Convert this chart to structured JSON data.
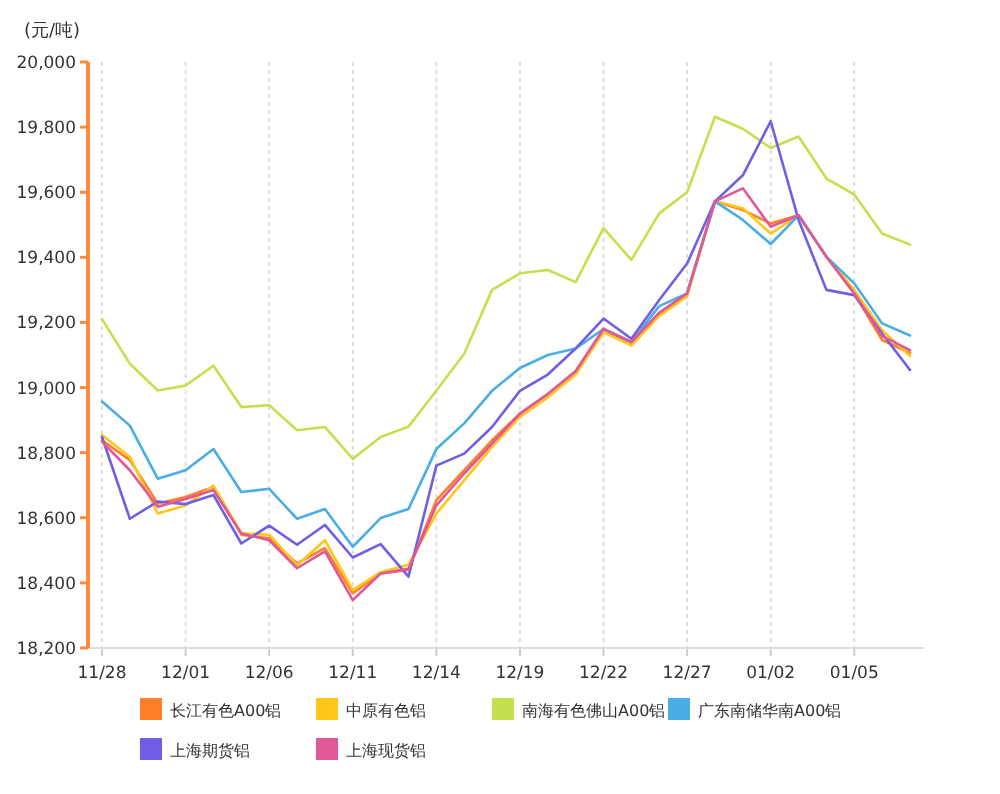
{
  "chart_data": {
    "type": "line",
    "ylabel": "(元/吨)",
    "categories": [
      "11/28",
      null,
      null,
      "12/01",
      null,
      null,
      "12/06",
      null,
      null,
      "12/11",
      null,
      null,
      "12/14",
      null,
      null,
      "12/19",
      null,
      null,
      "12/22",
      null,
      null,
      "12/27",
      null,
      null,
      "01/02",
      null,
      null,
      "01/05",
      null,
      null
    ],
    "series": [
      {
        "name": "长江有色A00铝",
        "color": "#ff7f2a",
        "values": [
          18838,
          18777,
          18644,
          18664,
          18695,
          18548,
          18537,
          18460,
          18507,
          18368,
          18429,
          18440,
          18654,
          18746,
          18838,
          18920,
          18980,
          19050,
          19180,
          19130,
          19226,
          19289,
          19572,
          19545,
          19504,
          19529,
          19402,
          19289,
          19146,
          19106
        ]
      },
      {
        "name": "中原有色铝",
        "color": "#ffc61a",
        "values": [
          18854,
          18787,
          18613,
          18638,
          18699,
          18552,
          18548,
          18454,
          18531,
          18378,
          18433,
          18456,
          18613,
          18715,
          18818,
          18910,
          18970,
          19040,
          19170,
          19130,
          19220,
          19280,
          19572,
          19551,
          19473,
          19529,
          19402,
          19300,
          19176,
          19097
        ]
      },
      {
        "name": "南海有色佛山A00铝",
        "color": "#c5e04f",
        "values": [
          19210,
          19073,
          18991,
          19006,
          19067,
          18940,
          18946,
          18869,
          18879,
          18781,
          18848,
          18880,
          18990,
          19104,
          19300,
          19351,
          19361,
          19324,
          19490,
          19392,
          19535,
          19600,
          19832,
          19795,
          19736,
          19771,
          19642,
          19593,
          19473,
          19439
        ]
      },
      {
        "name": "广东南储华南A00铝",
        "color": "#4aaee6",
        "values": [
          18957,
          18883,
          18720,
          18746,
          18811,
          18679,
          18689,
          18597,
          18627,
          18511,
          18599,
          18627,
          18811,
          18890,
          18990,
          19060,
          19100,
          19120,
          19180,
          19140,
          19250,
          19289,
          19572,
          19515,
          19441,
          19529,
          19402,
          19320,
          19197,
          19160
        ]
      },
      {
        "name": "上海期货铝",
        "color": "#6f5fe6",
        "values": [
          18848,
          18597,
          18650,
          18642,
          18670,
          18521,
          18576,
          18517,
          18578,
          18478,
          18519,
          18419,
          18760,
          18797,
          18879,
          18990,
          19040,
          19120,
          19212,
          19150,
          19269,
          19381,
          19572,
          19652,
          19818,
          19515,
          19300,
          19284,
          19166,
          19054
        ]
      },
      {
        "name": "上海现货铝",
        "color": "#e0589a",
        "values": [
          18834,
          18746,
          18634,
          18658,
          18685,
          18552,
          18531,
          18445,
          18497,
          18347,
          18429,
          18443,
          18638,
          18736,
          18828,
          18920,
          18980,
          19050,
          19180,
          19140,
          19230,
          19289,
          19572,
          19612,
          19494,
          19529,
          19402,
          19289,
          19158,
          19115
        ]
      }
    ],
    "ylim": [
      18200,
      20000
    ],
    "yticks": [
      {
        "value": 18200,
        "label": "18,200"
      },
      {
        "value": 18400,
        "label": "18,400"
      },
      {
        "value": 18600,
        "label": "18,600"
      },
      {
        "value": 18800,
        "label": "18,800"
      },
      {
        "value": 19000,
        "label": "19,000"
      },
      {
        "value": 19200,
        "label": "19,200"
      },
      {
        "value": 19400,
        "label": "19,400"
      },
      {
        "value": 19600,
        "label": "19,600"
      },
      {
        "value": 19800,
        "label": "19,800"
      },
      {
        "value": 20000,
        "label": "20,000"
      }
    ],
    "grid": "x",
    "legend": "bottom",
    "marker": "none",
    "line_style": "solid"
  }
}
